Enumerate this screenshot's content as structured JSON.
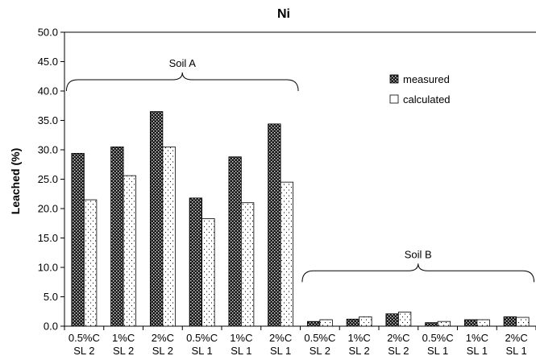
{
  "chart_data": {
    "type": "bar",
    "title": "Ni",
    "xlabel": "",
    "ylabel": "Leached (%)",
    "ylim": [
      0,
      50
    ],
    "yticks": [
      "0.0",
      "5.0",
      "10.0",
      "15.0",
      "20.0",
      "25.0",
      "30.0",
      "35.0",
      "40.0",
      "45.0",
      "50.0"
    ],
    "grid": false,
    "legend_position": "top-right",
    "categories": [
      [
        "0.5%C",
        "SL 2"
      ],
      [
        "1%C",
        "SL 2"
      ],
      [
        "2%C",
        "SL 2"
      ],
      [
        "0.5%C",
        "SL 1"
      ],
      [
        "1%C",
        "SL 1"
      ],
      [
        "2%C",
        "SL 1"
      ],
      [
        "0.5%C",
        "SL 2"
      ],
      [
        "1%C",
        "SL 2"
      ],
      [
        "2%C",
        "SL 2"
      ],
      [
        "0.5%C",
        "SL 1"
      ],
      [
        "1%C",
        "SL 1"
      ],
      [
        "2%C",
        "SL 1"
      ]
    ],
    "series": [
      {
        "name": "measured",
        "pattern": "dense-dots-dark",
        "values": [
          29.4,
          30.5,
          36.5,
          21.8,
          28.8,
          34.4,
          0.8,
          1.2,
          2.1,
          0.6,
          1.1,
          1.6
        ]
      },
      {
        "name": "calculated",
        "pattern": "sparse-dots-light",
        "values": [
          21.5,
          25.6,
          30.5,
          18.3,
          21.0,
          24.5,
          1.1,
          1.6,
          2.4,
          0.8,
          1.1,
          1.5
        ]
      }
    ],
    "annotations": [
      {
        "text": "Soil A",
        "from_category": 0,
        "to_category": 5,
        "brace_y": 40.0,
        "type": "brace"
      },
      {
        "text": "Soil B",
        "from_category": 6,
        "to_category": 11,
        "brace_y": 7.5,
        "type": "brace"
      }
    ]
  }
}
